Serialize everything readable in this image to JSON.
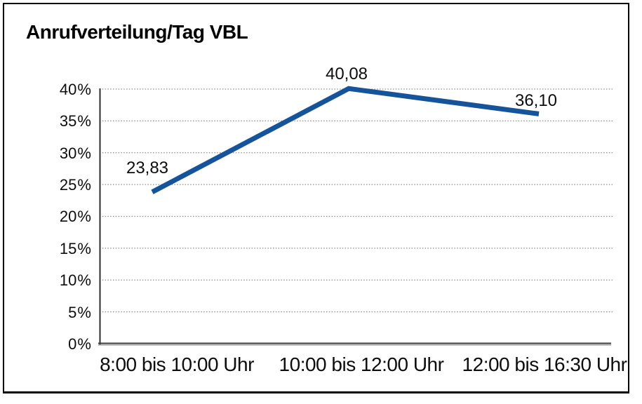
{
  "chart_data": {
    "type": "line",
    "title": "Anrufverteilung/Tag VBL",
    "categories": [
      "8:00 bis 10:00 Uhr",
      "10:00 bis 12:00 Uhr",
      "12:00 bis 16:30 Uhr"
    ],
    "values": [
      23.83,
      40.08,
      36.1
    ],
    "point_labels": [
      "23,83",
      "40,08",
      "36,10"
    ],
    "y_tick_labels": [
      "0 %",
      "5 %",
      "10 %",
      "15 %",
      "20 %",
      "25 %",
      "30 %",
      "35 %",
      "40 %"
    ],
    "y_tick_values": [
      0,
      5,
      10,
      15,
      20,
      25,
      30,
      35,
      40
    ],
    "ylim": [
      0,
      40
    ],
    "xlabel": "",
    "ylabel": "",
    "legend": "none",
    "grid": "dotted-horizontal",
    "line_color": "#15539B",
    "grid_color": "#8c8c8c",
    "axis_color": "#2e2e2e"
  }
}
